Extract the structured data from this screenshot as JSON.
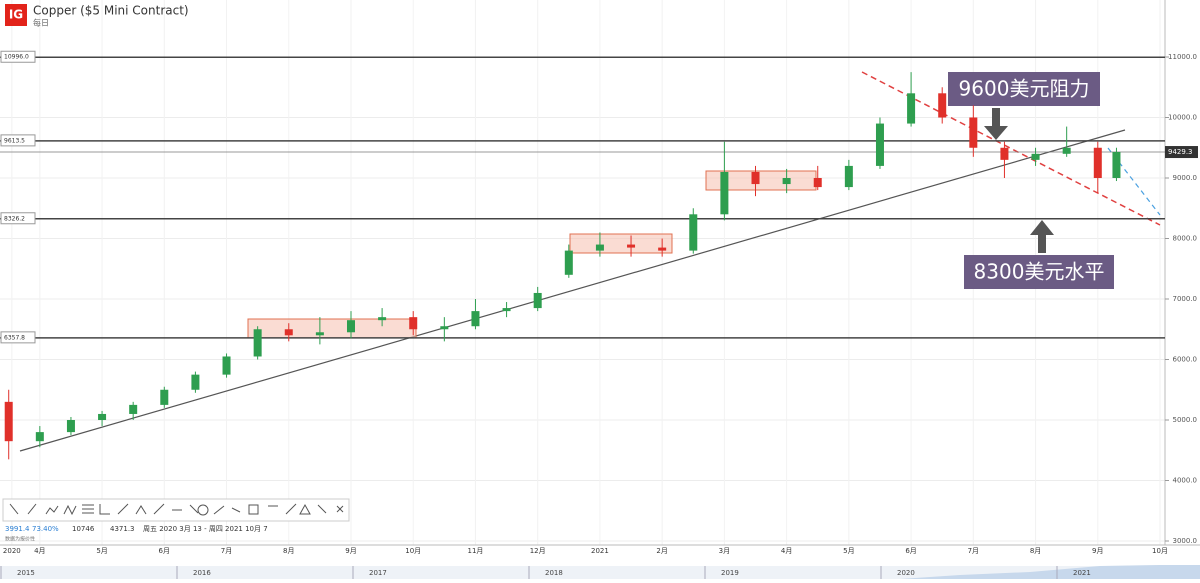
{
  "chart_data": {
    "type": "candlestick",
    "title": "Copper ($5 Mini Contract)",
    "subtitle": "每日",
    "logo": "IG",
    "up_color": "#2e9e4f",
    "down_color": "#e0302a",
    "x": [
      -0.5,
      0,
      0.5,
      1,
      1.5,
      2,
      2.5,
      3,
      3.5,
      4,
      4.5,
      5,
      5.5,
      6,
      6.5,
      7,
      7.5,
      8,
      8.5,
      9,
      9.5,
      10,
      10.5,
      11,
      11.5,
      12,
      12.5,
      13,
      13.5,
      14,
      14.5,
      15,
      15.5,
      16,
      16.5,
      17,
      17.3
    ],
    "open": [
      5300,
      4650,
      4800,
      5000,
      5100,
      5250,
      5500,
      5750,
      6050,
      6500,
      6400,
      6450,
      6650,
      6700,
      6500,
      6550,
      6800,
      6850,
      7400,
      7800,
      7900,
      7850,
      7800,
      8400,
      9100,
      8900,
      9000,
      8850,
      9200,
      9900,
      10400,
      10000,
      9500,
      9300,
      9400,
      9500,
      9000
    ],
    "high": [
      5500,
      4900,
      5050,
      5150,
      5300,
      5550,
      5800,
      6100,
      6550,
      6600,
      6700,
      6800,
      6850,
      6800,
      6700,
      7000,
      6950,
      7200,
      7900,
      8100,
      8050,
      8000,
      8500,
      9600,
      9200,
      9150,
      9200,
      9300,
      10000,
      10750,
      10500,
      10200,
      9600,
      9500,
      9850,
      9600,
      9500
    ],
    "low": [
      4350,
      4550,
      4750,
      4900,
      5000,
      5200,
      5450,
      5700,
      6000,
      6300,
      6250,
      6350,
      6550,
      6400,
      6300,
      6500,
      6700,
      6800,
      7350,
      7700,
      7700,
      7700,
      7750,
      8300,
      8700,
      8750,
      8800,
      8800,
      9150,
      9850,
      9900,
      9350,
      9000,
      9200,
      9350,
      8750,
      8950
    ],
    "close": [
      4650,
      4800,
      5000,
      5100,
      5250,
      5500,
      5750,
      6050,
      6500,
      6400,
      6450,
      6650,
      6700,
      6500,
      6550,
      6800,
      6850,
      7100,
      7800,
      7900,
      7850,
      7800,
      8400,
      9100,
      8900,
      9000,
      8850,
      9200,
      9900,
      10400,
      10000,
      9500,
      9300,
      9400,
      9500,
      9000,
      9430
    ],
    "xlim": [
      -0.64,
      18.08
    ],
    "xticks": [
      {
        "value": -0.45,
        "label": "2020"
      },
      {
        "value": 0,
        "label": "4月"
      },
      {
        "value": 1,
        "label": "5月"
      },
      {
        "value": 2,
        "label": "6月"
      },
      {
        "value": 3,
        "label": "7月"
      },
      {
        "value": 4,
        "label": "8月"
      },
      {
        "value": 5,
        "label": "9月"
      },
      {
        "value": 6,
        "label": "10月"
      },
      {
        "value": 7,
        "label": "11月"
      },
      {
        "value": 8,
        "label": "12月"
      },
      {
        "value": 9,
        "label": "2021"
      },
      {
        "value": 10,
        "label": "2月"
      },
      {
        "value": 11,
        "label": "3月"
      },
      {
        "value": 12,
        "label": "4月"
      },
      {
        "value": 13,
        "label": "5月"
      },
      {
        "value": 14,
        "label": "6月"
      },
      {
        "value": 15,
        "label": "7月"
      },
      {
        "value": 16,
        "label": "8月"
      },
      {
        "value": 17,
        "label": "9月"
      },
      {
        "value": 18,
        "label": "10月"
      }
    ],
    "ylim": [
      2934,
      11810
    ],
    "yticks": [
      {
        "value": 3000,
        "label": "3000.0"
      },
      {
        "value": 4000,
        "label": "4000.0"
      },
      {
        "value": 5000,
        "label": "5000.0"
      },
      {
        "value": 6000,
        "label": "6000.0"
      },
      {
        "value": 7000,
        "label": "7000.0"
      },
      {
        "value": 8000,
        "label": "8000.0"
      },
      {
        "value": 9000,
        "label": "9000.0"
      },
      {
        "value": 10000,
        "label": "10000.0"
      },
      {
        "value": 11000,
        "label": "11000.0"
      }
    ],
    "levels": [
      {
        "value": 10996.0,
        "label": "10996.0"
      },
      9613.5,
      8326.2,
      6357.8
    ],
    "last_price": 9429.3,
    "annotations": [
      "9600美元阻力",
      "8300美元水平"
    ],
    "info": {
      "low": 3991.4,
      "change": "73.40%",
      "high_value": 10746.0,
      "low_value": 4371.3,
      "range": "周五 2020 3月 13 - 周四 2021 10月 7",
      "note": "数据为报价性"
    },
    "navigator_years": [
      "2015",
      "2016",
      "2017",
      "2018",
      "2019",
      "2020",
      "2021"
    ]
  }
}
